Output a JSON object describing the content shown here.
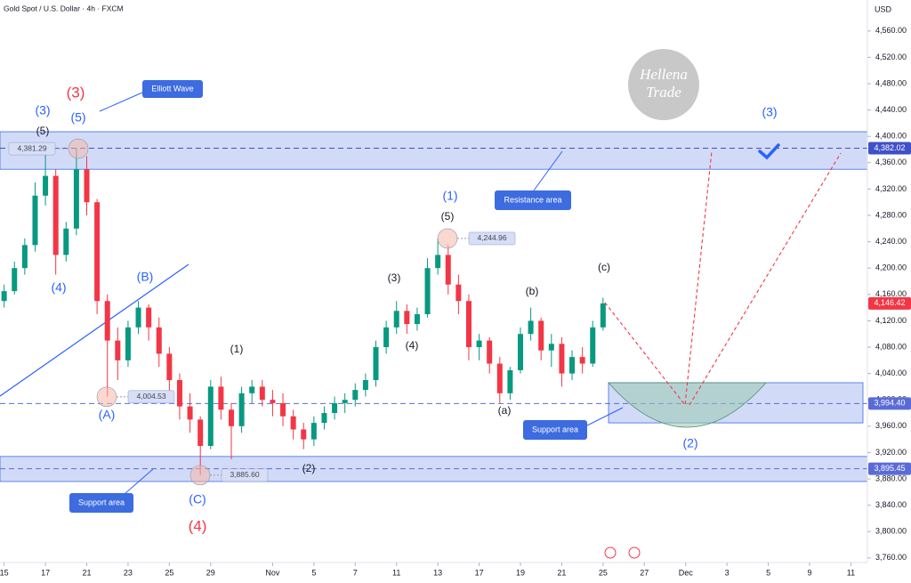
{
  "chart_data": {
    "type": "candlestick",
    "title": "Gold Spot / U.S. Dollar · 4h · FXCM",
    "y_axis_label": "USD",
    "ylim": [
      3753,
      4607
    ],
    "xlim": [
      -0.2,
      41.8
    ],
    "yticks": [
      {
        "value": 3760,
        "label": "3,760.00"
      },
      {
        "value": 3800,
        "label": "3,800.00"
      },
      {
        "value": 3840,
        "label": "3,840.00"
      },
      {
        "value": 3880,
        "label": "3,880.00"
      },
      {
        "value": 3920,
        "label": "3,920.00"
      },
      {
        "value": 3960,
        "label": "3,960.00"
      },
      {
        "value": 4000,
        "label": "4,000.00"
      },
      {
        "value": 4040,
        "label": "4,040.00"
      },
      {
        "value": 4080,
        "label": "4,080.00"
      },
      {
        "value": 4120,
        "label": "4,120.00"
      },
      {
        "value": 4160,
        "label": "4,160.00"
      },
      {
        "value": 4200,
        "label": "4,200.00"
      },
      {
        "value": 4240,
        "label": "4,240.00"
      },
      {
        "value": 4280,
        "label": "4,280.00"
      },
      {
        "value": 4320,
        "label": "4,320.00"
      },
      {
        "value": 4360,
        "label": "4,360.00"
      },
      {
        "value": 4400,
        "label": "4,400.00"
      },
      {
        "value": 4440,
        "label": "4,440.00"
      },
      {
        "value": 4480,
        "label": "4,480.00"
      },
      {
        "value": 4520,
        "label": "4,520.00"
      },
      {
        "value": 4560,
        "label": "4,560.00"
      }
    ],
    "xticks": [
      {
        "value": 0,
        "label": "15"
      },
      {
        "value": 2,
        "label": "17"
      },
      {
        "value": 4,
        "label": "21"
      },
      {
        "value": 6,
        "label": "23"
      },
      {
        "value": 8,
        "label": "25"
      },
      {
        "value": 10,
        "label": "29"
      },
      {
        "value": 13,
        "label": "Nov"
      },
      {
        "value": 15,
        "label": "5"
      },
      {
        "value": 17,
        "label": "7"
      },
      {
        "value": 19,
        "label": "11"
      },
      {
        "value": 21,
        "label": "13"
      },
      {
        "value": 23,
        "label": "17"
      },
      {
        "value": 25,
        "label": "19"
      },
      {
        "value": 27,
        "label": "21"
      },
      {
        "value": 29,
        "label": "25"
      },
      {
        "value": 31,
        "label": "27"
      },
      {
        "value": 33,
        "label": "Dec"
      },
      {
        "value": 35,
        "label": "3"
      },
      {
        "value": 37,
        "label": "5"
      },
      {
        "value": 39,
        "label": "9"
      },
      {
        "value": 41,
        "label": "11"
      }
    ],
    "up_color": "#089981",
    "down_color": "#f23645",
    "x": [
      0,
      0.5,
      1,
      1.5,
      2,
      2.5,
      3,
      3.5,
      4,
      4.5,
      5,
      5.5,
      6,
      6.5,
      7,
      7.5,
      8,
      8.5,
      9,
      9.5,
      10,
      10.5,
      11,
      11.5,
      12,
      12.5,
      13,
      13.5,
      14,
      14.5,
      15,
      15.5,
      16,
      16.5,
      17,
      17.5,
      18,
      18.5,
      19,
      19.5,
      20,
      20.5,
      21,
      21.5,
      22,
      22.5,
      23,
      23.5,
      24,
      24.5,
      25,
      25.5,
      26,
      26.5,
      27,
      27.5,
      28,
      28.5,
      29
    ],
    "open": [
      4150,
      4165,
      4200,
      4235,
      4310,
      4340,
      4220,
      4260,
      4350,
      4300,
      4150,
      4090,
      4060,
      4110,
      4140,
      4110,
      4070,
      4030,
      3990,
      3970,
      3930,
      4020,
      3985,
      3960,
      4010,
      4020,
      4000,
      3995,
      3975,
      3955,
      3940,
      3965,
      3980,
      3995,
      4000,
      4015,
      4030,
      4080,
      4110,
      4135,
      4115,
      4130,
      4200,
      4220,
      4175,
      4150,
      4080,
      4090,
      4055,
      4010,
      4045,
      4100,
      4120,
      4075,
      4085,
      4040,
      4065,
      4055,
      4110
    ],
    "high": [
      4175,
      4210,
      4245,
      4330,
      4381,
      4350,
      4270,
      4381.29,
      4370,
      4305,
      4160,
      4110,
      4120,
      4150,
      4145,
      4125,
      4080,
      4040,
      4010,
      3975,
      4030,
      4035,
      3995,
      4020,
      4030,
      4030,
      4015,
      4010,
      3985,
      3965,
      3975,
      3990,
      4005,
      4010,
      4025,
      4040,
      4090,
      4120,
      4150,
      4145,
      4140,
      4215,
      4244.96,
      4235,
      4190,
      4160,
      4100,
      4095,
      4065,
      4050,
      4110,
      4140,
      4125,
      4100,
      4095,
      4075,
      4080,
      4120,
      4155
    ],
    "low": [
      4140,
      4160,
      4190,
      4225,
      4295,
      4190,
      4210,
      4250,
      4280,
      4130,
      4004.53,
      4030,
      4050,
      4100,
      4090,
      4050,
      4010,
      3970,
      3950,
      3885.6,
      3925,
      3970,
      3910,
      3950,
      3995,
      3990,
      3975,
      3960,
      3940,
      3925,
      3930,
      3955,
      3970,
      3980,
      3990,
      4005,
      4020,
      4070,
      4100,
      4100,
      4105,
      4125,
      4190,
      4160,
      4130,
      4060,
      4060,
      4040,
      3995,
      4000,
      4040,
      4090,
      4060,
      4050,
      4020,
      4030,
      4040,
      4050,
      4105
    ],
    "close": [
      4165,
      4200,
      4235,
      4310,
      4340,
      4220,
      4260,
      4350,
      4300,
      4150,
      4090,
      4060,
      4110,
      4140,
      4110,
      4070,
      4030,
      3990,
      3970,
      3930,
      4020,
      3985,
      3960,
      4010,
      4020,
      4000,
      3995,
      3975,
      3955,
      3940,
      3965,
      3980,
      3995,
      4000,
      4015,
      4030,
      4080,
      4110,
      4135,
      4115,
      4130,
      4200,
      4220,
      4175,
      4150,
      4080,
      4090,
      4055,
      4010,
      4045,
      4100,
      4120,
      4075,
      4085,
      4040,
      4065,
      4055,
      4110,
      4146.42
    ],
    "zones": [
      {
        "label": "Resistance area",
        "range": [
          4350,
          4407
        ]
      },
      {
        "label": "Support area",
        "range": [
          3965,
          4026
        ]
      },
      {
        "label": "Support area",
        "range": [
          3876,
          3914
        ]
      }
    ],
    "price_tags": [
      {
        "value": 4382.02,
        "label": "4,382.02",
        "color": "#3f51c8"
      },
      {
        "value": 4146.42,
        "label": "4,146.42",
        "color": "#f23645"
      },
      {
        "value": 3994.4,
        "label": "3,994.40",
        "color": "#5b6bd6"
      },
      {
        "value": 3895.45,
        "label": "3,895.45",
        "color": "#5b6bd6"
      }
    ],
    "point_labels": [
      {
        "value": 4381.29,
        "label": "4,381.29"
      },
      {
        "value": 4004.53,
        "label": "4,004.53"
      },
      {
        "value": 3885.6,
        "label": "3,885.60"
      },
      {
        "value": 4244.96,
        "label": "4,244.96"
      }
    ],
    "wave_labels": [
      "(3)",
      "(3)",
      "(5)",
      "(5)",
      "(4)",
      "(B)",
      "(A)",
      "(C)",
      "(4)",
      "(1)",
      "(2)",
      "(3)",
      "(4)",
      "(1)",
      "(5)",
      "(a)",
      "(b)",
      "(c)",
      "(3)",
      "(2)"
    ],
    "callout": "Elliott Wave",
    "watermark": [
      "Hellena",
      "Trade"
    ]
  }
}
